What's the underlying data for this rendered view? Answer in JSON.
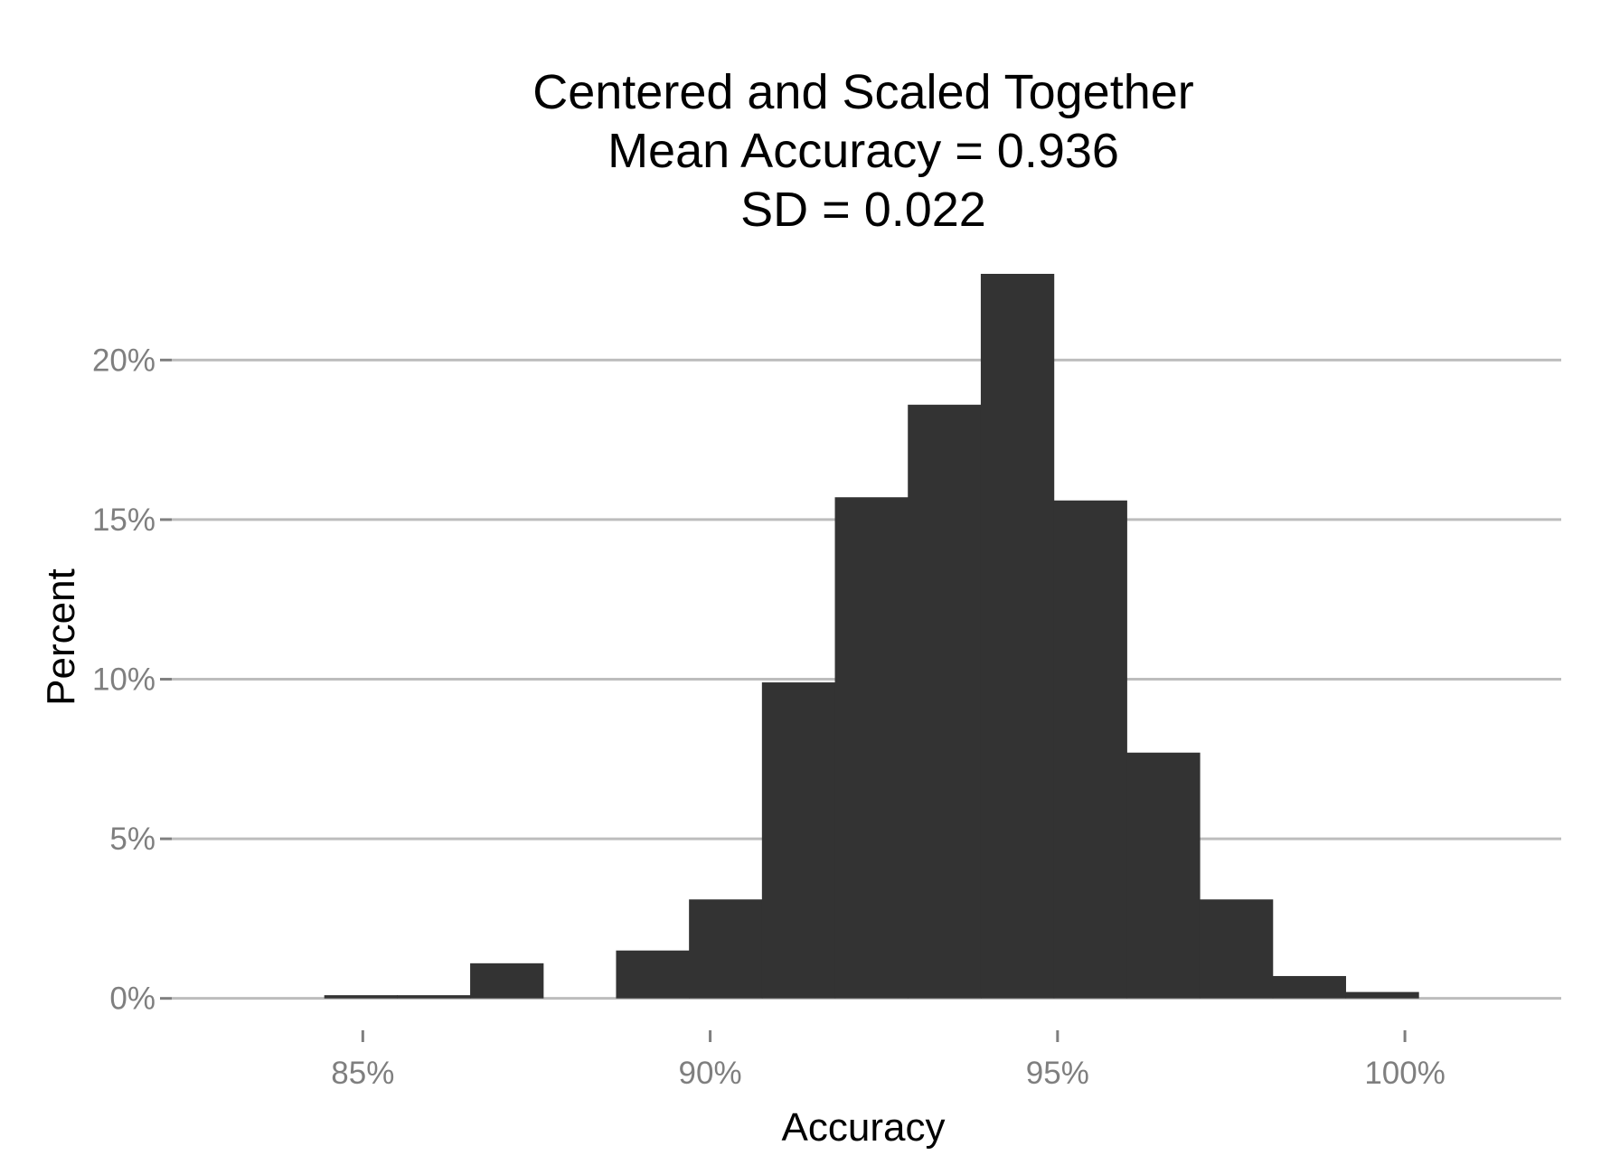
{
  "chart_data": {
    "type": "bar",
    "title_lines": [
      "Centered and Scaled Together",
      "Mean Accuracy = 0.936",
      "SD = 0.022"
    ],
    "xlabel": "Accuracy",
    "ylabel": "Percent",
    "x_ticks": [
      {
        "value": 0.85,
        "label": "85%"
      },
      {
        "value": 0.9,
        "label": "90%"
      },
      {
        "value": 0.95,
        "label": "95%"
      },
      {
        "value": 1.0,
        "label": "100%"
      }
    ],
    "y_ticks": [
      {
        "value": 0,
        "label": "0%"
      },
      {
        "value": 5,
        "label": "5%"
      },
      {
        "value": 10,
        "label": "10%"
      },
      {
        "value": 15,
        "label": "15%"
      },
      {
        "value": 20,
        "label": "20%"
      }
    ],
    "xlim": [
      0.8225,
      1.0225
    ],
    "ylim": [
      -1.0,
      22.7
    ],
    "bin_width": 0.0105,
    "bins": [
      {
        "center": 0.8497,
        "value": 0.1
      },
      {
        "center": 0.8602,
        "value": 0.1
      },
      {
        "center": 0.8707,
        "value": 1.1
      },
      {
        "center": 0.8812,
        "value": 0.0
      },
      {
        "center": 0.8917,
        "value": 1.5
      },
      {
        "center": 0.9022,
        "value": 3.1
      },
      {
        "center": 0.9127,
        "value": 9.9
      },
      {
        "center": 0.9232,
        "value": 15.7
      },
      {
        "center": 0.9337,
        "value": 18.6
      },
      {
        "center": 0.9442,
        "value": 22.7
      },
      {
        "center": 0.9547,
        "value": 15.6
      },
      {
        "center": 0.9652,
        "value": 7.7
      },
      {
        "center": 0.9757,
        "value": 3.1
      },
      {
        "center": 0.9862,
        "value": 0.7
      },
      {
        "center": 0.9967,
        "value": 0.2
      }
    ],
    "grid": "horizontal-major",
    "bar_color": "#333333",
    "grid_color": "#bdbdbd",
    "tick_label_color": "#7f7f7f"
  }
}
